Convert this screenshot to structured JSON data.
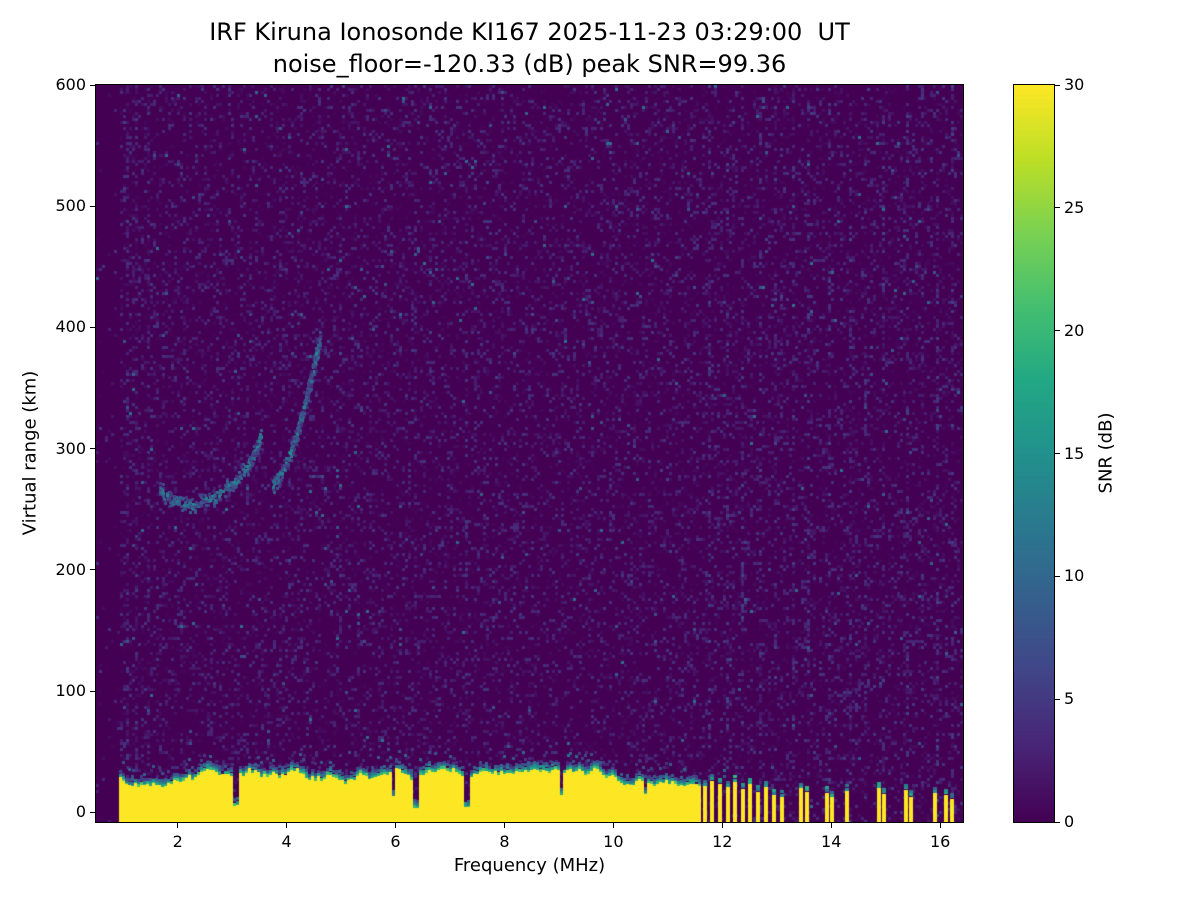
{
  "station": "IRF Kiruna Ionosonde KI167",
  "timestamp_ut": "2025-11-23 03:29:00",
  "noise_floor_db": -120.33,
  "peak_snr_db": 99.36,
  "chart_data": {
    "type": "heatmap",
    "title": "IRF Kiruna Ionosonde KI167 2025-11-23 03:29:00  UT",
    "subtitle": "noise_floor=-120.33 (dB) peak SNR=99.36",
    "xlabel": "Frequency (MHz)",
    "ylabel": "Virtual range (km)",
    "xlim": [
      0.5,
      16.42
    ],
    "ylim": [
      -8,
      600
    ],
    "xticks": [
      2,
      4,
      6,
      8,
      10,
      12,
      14,
      16
    ],
    "yticks": [
      0,
      100,
      200,
      300,
      400,
      500,
      600
    ],
    "grid": false,
    "colorbar": {
      "label": "SNR (dB)",
      "ticks": [
        0,
        5,
        10,
        15,
        20,
        25,
        30
      ],
      "min": 0,
      "max": 30,
      "colormap": "viridis",
      "position": "right"
    },
    "colors": {
      "background": "#ffffff",
      "viridis_stops": [
        "#440154",
        "#482475",
        "#414487",
        "#355f8d",
        "#2a788e",
        "#21918c",
        "#22a884",
        "#44bf70",
        "#7ad151",
        "#bddf26",
        "#fde725"
      ]
    },
    "heatmap_features": {
      "background_snr_db": 0,
      "speckle": {
        "density": 0.3,
        "low_max_db": 4.5,
        "bright_prob": 0.02,
        "bright_min_db": 5,
        "bright_max_db": 11,
        "left_quiet_until_mhz": 0.93,
        "left_quiet_density": 0.05
      },
      "noise_columns": [
        {
          "f": 1.05,
          "p": 0.45,
          "max_db": 5
        },
        {
          "f": 1.2,
          "p": 0.4,
          "max_db": 5
        },
        {
          "f": 1.45,
          "p": 0.35,
          "max_db": 5
        },
        {
          "f": 6.35,
          "p": 0.2,
          "max_db": 5
        },
        {
          "f": 7.3,
          "p": 0.2,
          "max_db": 5
        },
        {
          "f": 11.72,
          "p": 0.35,
          "max_db": 6
        },
        {
          "f": 12.05,
          "p": 0.3,
          "max_db": 6
        },
        {
          "f": 12.35,
          "p": 0.3,
          "max_db": 6
        },
        {
          "f": 12.65,
          "p": 0.3,
          "max_db": 6
        },
        {
          "f": 12.95,
          "p": 0.3,
          "max_db": 6
        },
        {
          "f": 13.3,
          "p": 0.28,
          "max_db": 6
        },
        {
          "f": 13.55,
          "p": 0.3,
          "max_db": 6
        },
        {
          "f": 13.95,
          "p": 0.32,
          "max_db": 6
        },
        {
          "f": 14.35,
          "p": 0.3,
          "max_db": 6
        },
        {
          "f": 14.6,
          "p": 0.25,
          "max_db": 5
        },
        {
          "f": 14.95,
          "p": 0.32,
          "max_db": 6
        },
        {
          "f": 15.4,
          "p": 0.3,
          "max_db": 6
        },
        {
          "f": 15.65,
          "p": 0.25,
          "max_db": 5
        },
        {
          "f": 15.95,
          "p": 0.3,
          "max_db": 6
        },
        {
          "f": 16.2,
          "p": 0.28,
          "max_db": 6
        }
      ],
      "ground_clutter": {
        "f_start": 0.93,
        "f_end": 11.56,
        "top_km_min": 23,
        "top_km_max": 37,
        "core_db": 30,
        "notches": [
          {
            "f": 3.06,
            "w": 0.1,
            "top_km": 7
          },
          {
            "f": 5.92,
            "w": 0.07,
            "top_km": 14
          },
          {
            "f": 6.34,
            "w": 0.12,
            "top_km": 5
          },
          {
            "f": 7.28,
            "w": 0.12,
            "top_km": 5
          },
          {
            "f": 9.02,
            "w": 0.06,
            "top_km": 15
          },
          {
            "f": 10.55,
            "w": 0.06,
            "top_km": 16
          }
        ]
      },
      "rf_bars": {
        "width_mhz": 0.08,
        "core_db": 30,
        "bars": [
          [
            11.68,
            22
          ],
          [
            11.82,
            26
          ],
          [
            11.96,
            23
          ],
          [
            12.1,
            21
          ],
          [
            12.24,
            25
          ],
          [
            12.38,
            19
          ],
          [
            12.52,
            23
          ],
          [
            12.66,
            17
          ],
          [
            12.8,
            21
          ],
          [
            12.95,
            15
          ],
          [
            13.1,
            13
          ],
          [
            13.45,
            20
          ],
          [
            13.56,
            17
          ],
          [
            13.92,
            16
          ],
          [
            14.02,
            13
          ],
          [
            14.3,
            18
          ],
          [
            14.88,
            20
          ],
          [
            14.98,
            15
          ],
          [
            15.37,
            18
          ],
          [
            15.46,
            13
          ],
          [
            15.9,
            16
          ],
          [
            16.12,
            14
          ],
          [
            16.22,
            11
          ]
        ]
      },
      "echo_traces": [
        {
          "name": "F-region echo lower segment",
          "points_mhz_km": [
            [
              1.65,
              268
            ],
            [
              1.8,
              261
            ],
            [
              2.0,
              256
            ],
            [
              2.2,
              254
            ],
            [
              2.45,
              257
            ],
            [
              2.7,
              262
            ],
            [
              2.95,
              270
            ],
            [
              3.15,
              279
            ],
            [
              3.3,
              289
            ],
            [
              3.42,
              300
            ],
            [
              3.52,
              312
            ]
          ],
          "thickness_km": 8,
          "snr_db": [
            5,
            16
          ]
        },
        {
          "name": "F-region echo cusp segment",
          "points_mhz_km": [
            [
              3.72,
              270
            ],
            [
              3.85,
              278
            ],
            [
              3.98,
              289
            ],
            [
              4.1,
              303
            ],
            [
              4.2,
              318
            ],
            [
              4.32,
              337
            ],
            [
              4.42,
              356
            ],
            [
              4.52,
              377
            ],
            [
              4.6,
              393
            ]
          ],
          "thickness_km": 9,
          "snr_db": [
            5,
            16
          ]
        }
      ]
    }
  }
}
